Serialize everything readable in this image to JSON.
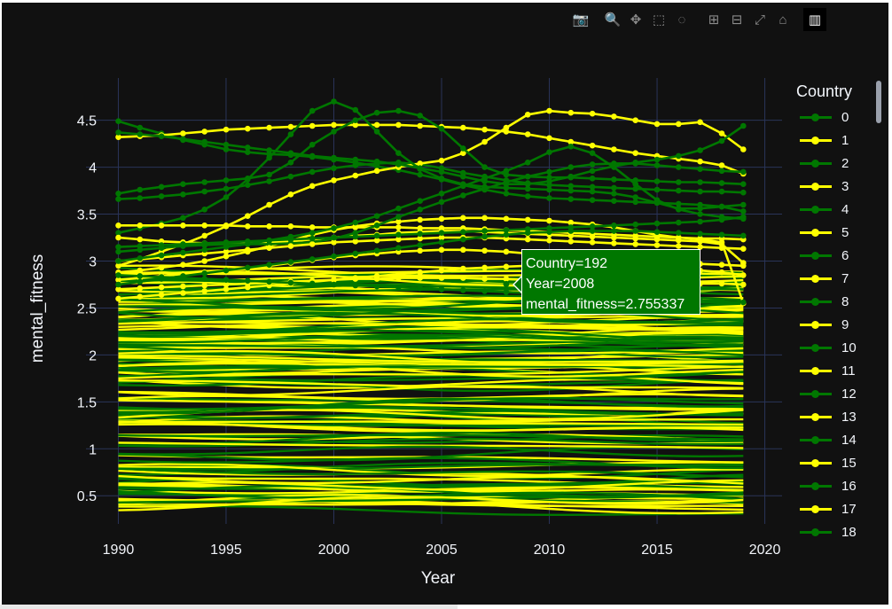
{
  "modebar": {
    "buttons": [
      {
        "name": "camera-icon",
        "glyph": "📷"
      },
      {
        "name": "zoom-icon",
        "glyph": "🔍"
      },
      {
        "name": "pan-icon",
        "glyph": "✥"
      },
      {
        "name": "box-select-icon",
        "glyph": "⬚"
      },
      {
        "name": "lasso-select-icon",
        "glyph": "◌"
      },
      {
        "name": "zoom-in-icon",
        "glyph": "⊞"
      },
      {
        "name": "zoom-out-icon",
        "glyph": "⊟"
      },
      {
        "name": "autoscale-icon",
        "glyph": "⤢"
      },
      {
        "name": "reset-axes-icon",
        "glyph": "⌂"
      },
      {
        "name": "plotly-logo-icon",
        "glyph": "▥"
      }
    ]
  },
  "tooltip": {
    "line1": "Country=192",
    "line2": "Year=2008",
    "line3": "mental_fitness=2.755337",
    "year": 2008,
    "value": 2.755337
  },
  "chart_data": {
    "type": "line",
    "title": "",
    "xlabel": "Year",
    "ylabel": "mental_fitness",
    "xlim": [
      1988.5,
      2020.8
    ],
    "ylim": [
      0.2,
      4.95
    ],
    "x_ticks": [
      1990,
      1995,
      2000,
      2005,
      2010,
      2015,
      2020
    ],
    "y_ticks": [
      0.5,
      1,
      1.5,
      2,
      2.5,
      3,
      3.5,
      4,
      4.5
    ],
    "x_tick_labels": [
      "1990",
      "1995",
      "2000",
      "2005",
      "2010",
      "2015",
      "2020"
    ],
    "y_tick_labels": [
      "0.5",
      "1",
      "1.5",
      "2",
      "2.5",
      "3",
      "3.5",
      "4",
      "4.5"
    ],
    "grid": true,
    "legend_title": "Country",
    "legend_position": "right",
    "colors": {
      "even": "#007700",
      "odd": "#ffff00",
      "background": "#111111",
      "grid": "#2a3459",
      "text": "#f2f5fa"
    },
    "series_start_year": 1990,
    "series_end_year": 2019,
    "series": [
      {
        "name": "0",
        "values": [
          4.49,
          4.42,
          4.36,
          4.29,
          4.24,
          4.19,
          4.16,
          4.14,
          4.13,
          4.11,
          4.08,
          4.05,
          4.01,
          3.97,
          3.92,
          3.87,
          3.81,
          3.76,
          3.72,
          3.69,
          3.67,
          3.66,
          3.65,
          3.64,
          3.63,
          3.62,
          3.61,
          3.6,
          3.58,
          3.53
        ]
      },
      {
        "name": "1",
        "values": [
          4.32,
          4.33,
          4.34,
          4.36,
          4.38,
          4.4,
          4.41,
          4.42,
          4.43,
          4.44,
          4.45,
          4.45,
          4.45,
          4.45,
          4.44,
          4.43,
          4.42,
          4.4,
          4.38,
          4.35,
          4.31,
          4.27,
          4.23,
          4.19,
          4.15,
          4.12,
          4.09,
          4.06,
          4.02,
          3.93
        ]
      },
      {
        "name": "2",
        "values": [
          3.66,
          3.67,
          3.69,
          3.71,
          3.74,
          3.77,
          3.81,
          3.85,
          3.9,
          3.95,
          3.99,
          4.02,
          4.04,
          4.05,
          4.03,
          3.99,
          3.94,
          3.9,
          3.86,
          3.83,
          3.81,
          3.8,
          3.79,
          3.78,
          3.77,
          3.76,
          3.75,
          3.74,
          3.74,
          3.73
        ]
      },
      {
        "name": "3",
        "values": [
          2.95,
          3.02,
          3.1,
          3.18,
          3.27,
          3.37,
          3.48,
          3.6,
          3.71,
          3.8,
          3.86,
          3.91,
          3.96,
          4.0,
          4.04,
          4.07,
          4.15,
          4.27,
          4.42,
          4.56,
          4.6,
          4.58,
          4.57,
          4.54,
          4.5,
          4.46,
          4.46,
          4.48,
          4.36,
          4.19
        ]
      },
      {
        "name": "4",
        "values": [
          3.72,
          3.76,
          3.79,
          3.82,
          3.84,
          3.86,
          3.88,
          3.92,
          4.05,
          4.24,
          4.38,
          4.5,
          4.58,
          4.6,
          4.55,
          4.41,
          4.2,
          4.0,
          3.92,
          3.9,
          3.89,
          3.89,
          3.88,
          3.87,
          3.86,
          3.85,
          3.84,
          3.84,
          3.83,
          3.82
        ]
      },
      {
        "name": "5",
        "values": [
          2.88,
          2.9,
          2.93,
          2.96,
          3.0,
          3.05,
          3.1,
          3.16,
          3.22,
          3.28,
          3.33,
          3.37,
          3.4,
          3.42,
          3.44,
          3.45,
          3.46,
          3.46,
          3.45,
          3.44,
          3.43,
          3.41,
          3.39,
          3.36,
          3.32,
          3.28,
          3.25,
          3.23,
          3.2,
          2.55
        ]
      },
      {
        "name": "6",
        "values": [
          3.3,
          3.35,
          3.4,
          3.46,
          3.55,
          3.68,
          3.87,
          4.1,
          4.35,
          4.6,
          4.7,
          4.61,
          4.38,
          4.15,
          3.98,
          3.88,
          3.82,
          3.79,
          3.78,
          3.77,
          3.76,
          3.75,
          3.74,
          3.72,
          3.68,
          3.62,
          3.56,
          3.56,
          3.58,
          3.6
        ]
      },
      {
        "name": "7",
        "values": [
          3.38,
          3.38,
          3.38,
          3.38,
          3.38,
          3.38,
          3.37,
          3.37,
          3.37,
          3.36,
          3.36,
          3.36,
          3.36,
          3.36,
          3.35,
          3.35,
          3.35,
          3.34,
          3.33,
          3.32,
          3.31,
          3.3,
          3.29,
          3.28,
          3.27,
          3.26,
          3.25,
          3.24,
          3.24,
          3.23
        ]
      },
      {
        "name": "8",
        "values": [
          4.37,
          4.35,
          4.33,
          4.3,
          4.27,
          4.24,
          4.21,
          4.18,
          4.15,
          4.12,
          4.1,
          4.08,
          4.06,
          4.03,
          3.99,
          3.95,
          3.9,
          3.85,
          3.82,
          3.82,
          3.85,
          3.9,
          3.96,
          4.01,
          4.05,
          4.08,
          4.12,
          4.18,
          4.28,
          4.44
        ]
      },
      {
        "name": "9",
        "values": [
          3.25,
          3.23,
          3.21,
          3.2,
          3.19,
          3.19,
          3.19,
          3.2,
          3.21,
          3.23,
          3.25,
          3.27,
          3.28,
          3.3,
          3.31,
          3.32,
          3.32,
          3.31,
          3.3,
          3.29,
          3.28,
          3.27,
          3.26,
          3.25,
          3.24,
          3.23,
          3.22,
          3.21,
          3.18,
          2.98
        ]
      },
      {
        "name": "10",
        "values": [
          3.1,
          3.12,
          3.14,
          3.16,
          3.17,
          3.18,
          3.18,
          3.18,
          3.19,
          3.2,
          3.24,
          3.3,
          3.38,
          3.47,
          3.55,
          3.63,
          3.7,
          3.77,
          3.84,
          3.9,
          3.95,
          4.0,
          4.03,
          4.04,
          4.04,
          4.02,
          4.0,
          3.98,
          3.96,
          3.95
        ]
      },
      {
        "name": "11",
        "values": [
          3.0,
          3.02,
          3.04,
          3.06,
          3.08,
          3.1,
          3.12,
          3.14,
          3.16,
          3.18,
          3.2,
          3.21,
          3.22,
          3.23,
          3.24,
          3.25,
          3.25,
          3.25,
          3.24,
          3.23,
          3.22,
          3.21,
          3.2,
          3.19,
          3.18,
          3.17,
          3.16,
          3.15,
          3.14,
          3.13
        ]
      },
      {
        "name": "12",
        "values": [
          3.0,
          3.03,
          3.06,
          3.09,
          3.12,
          3.15,
          3.18,
          3.22,
          3.26,
          3.3,
          3.35,
          3.41,
          3.48,
          3.56,
          3.64,
          3.72,
          3.8,
          3.88,
          3.96,
          4.05,
          4.16,
          4.22,
          4.15,
          4.0,
          3.82,
          3.65,
          3.55,
          3.5,
          3.47,
          3.45
        ]
      },
      {
        "name": "13",
        "values": [
          2.8,
          2.82,
          2.84,
          2.86,
          2.88,
          2.9,
          2.92,
          2.95,
          2.98,
          3.01,
          3.04,
          3.06,
          3.08,
          3.1,
          3.11,
          3.12,
          3.12,
          3.11,
          3.1,
          3.08,
          3.06,
          3.04,
          3.02,
          3.01,
          3.0,
          2.99,
          2.98,
          2.97,
          2.96,
          2.95
        ]
      },
      {
        "name": "14",
        "values": [
          3.15,
          3.16,
          3.17,
          3.18,
          3.19,
          3.2,
          3.21,
          3.22,
          3.23,
          3.24,
          3.25,
          3.26,
          3.27,
          3.28,
          3.29,
          3.3,
          3.31,
          3.32,
          3.33,
          3.34,
          3.35,
          3.36,
          3.37,
          3.38,
          3.39,
          3.4,
          3.41,
          3.42,
          3.44,
          3.47
        ]
      },
      {
        "name": "15",
        "values": [
          2.7,
          2.71,
          2.72,
          2.73,
          2.74,
          2.75,
          2.76,
          2.77,
          2.78,
          2.79,
          2.8,
          2.81,
          2.81,
          2.82,
          2.82,
          2.82,
          2.82,
          2.81,
          2.81,
          2.8,
          2.8,
          2.79,
          2.79,
          2.78,
          2.78,
          2.77,
          2.77,
          2.76,
          2.76,
          2.75
        ]
      },
      {
        "name": "16",
        "values": [
          2.75,
          2.78,
          2.81,
          2.84,
          2.87,
          2.9,
          2.93,
          2.96,
          2.99,
          3.02,
          3.05,
          3.08,
          3.11,
          3.14,
          3.17,
          3.2,
          3.23,
          3.26,
          3.28,
          3.3,
          3.31,
          3.32,
          3.32,
          3.32,
          3.32,
          3.31,
          3.3,
          3.29,
          3.28,
          3.27
        ]
      },
      {
        "name": "17",
        "values": [
          2.6,
          2.62,
          2.64,
          2.66,
          2.68,
          2.7,
          2.72,
          2.74,
          2.76,
          2.78,
          2.8,
          2.82,
          2.84,
          2.86,
          2.88,
          2.9,
          2.92,
          2.93,
          2.94,
          2.95,
          2.95,
          2.95,
          2.95,
          2.94,
          2.93,
          2.92,
          2.91,
          2.9,
          2.88,
          2.85
        ]
      },
      {
        "name": "18",
        "values": [
          2.85,
          2.84,
          2.83,
          2.82,
          2.81,
          2.8,
          2.79,
          2.78,
          2.77,
          2.76,
          2.75,
          2.74,
          2.73,
          2.72,
          2.71,
          2.7,
          2.69,
          2.68,
          2.67,
          2.66,
          2.65,
          2.64,
          2.63,
          2.62,
          2.61,
          2.6,
          2.59,
          2.58,
          2.57,
          2.56
        ]
      }
    ]
  }
}
